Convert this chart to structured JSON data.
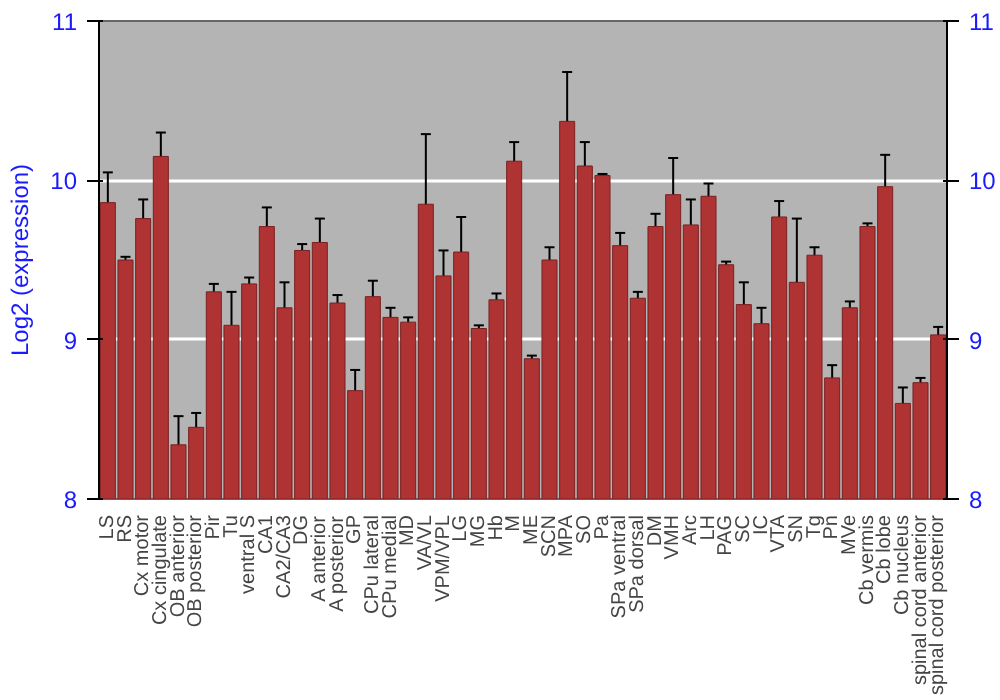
{
  "chart_data": {
    "type": "bar",
    "ylabel": "Log2 (expression)",
    "categories": [
      "LS",
      "RS",
      "Cx motor",
      "Cx cingulate",
      "OB anterior",
      "OB posterior",
      "Pir",
      "Tu",
      "ventral S",
      "CA1",
      "CA2/CA3",
      "DG",
      "A anterior",
      "A posterior",
      "GP",
      "CPu lateral",
      "CPu medial",
      "MD",
      "VA/VL",
      "VPM/VPL",
      "LG",
      "MG",
      "Hb",
      "M",
      "ME",
      "SCN",
      "MPA",
      "SO",
      "Pa",
      "SPa ventral",
      "SPa dorsal",
      "DM",
      "VMH",
      "Arc",
      "LH",
      "PAG",
      "SC",
      "IC",
      "VTA",
      "SN",
      "Tg",
      "Pn",
      "MVe",
      "Cb vermis",
      "Cb lobe",
      "Cb nucleus",
      "spinal cord anterior",
      "spinal cord posterior"
    ],
    "values": [
      9.86,
      9.5,
      9.76,
      10.15,
      8.34,
      8.45,
      9.3,
      9.09,
      9.35,
      9.71,
      9.2,
      9.56,
      9.61,
      9.23,
      8.68,
      9.27,
      9.14,
      9.11,
      9.85,
      9.4,
      9.55,
      9.07,
      9.25,
      10.12,
      8.88,
      9.5,
      10.37,
      10.09,
      10.03,
      9.59,
      9.26,
      9.71,
      9.91,
      9.72,
      9.9,
      9.47,
      9.22,
      9.1,
      9.77,
      9.36,
      9.53,
      8.76,
      9.2,
      9.71,
      9.96,
      8.6,
      8.73,
      9.03
    ],
    "errors": [
      0.19,
      0.02,
      0.12,
      0.15,
      0.18,
      0.09,
      0.05,
      0.21,
      0.04,
      0.12,
      0.16,
      0.04,
      0.15,
      0.05,
      0.13,
      0.1,
      0.06,
      0.03,
      0.44,
      0.16,
      0.22,
      0.02,
      0.04,
      0.12,
      0.02,
      0.08,
      0.31,
      0.15,
      0.01,
      0.08,
      0.04,
      0.08,
      0.23,
      0.16,
      0.08,
      0.02,
      0.14,
      0.1,
      0.1,
      0.4,
      0.05,
      0.08,
      0.04,
      0.02,
      0.2,
      0.1,
      0.03,
      0.05
    ],
    "color": "#b03333",
    "ylim": [
      8,
      11
    ],
    "yticks": [
      8,
      9,
      10,
      11
    ],
    "y2lim": [
      8,
      11
    ],
    "y2ticks": [
      8,
      9,
      10,
      11
    ],
    "grid": "y"
  }
}
